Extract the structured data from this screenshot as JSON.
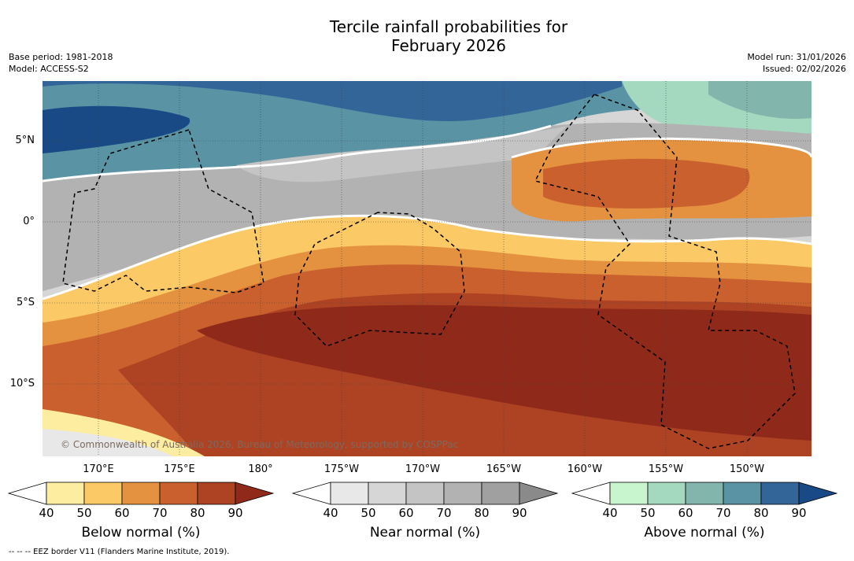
{
  "title": "Tercile rainfall probabilities for\nFebruary 2026",
  "meta_left": {
    "base_period": "Base period: 1981-2018",
    "model": "Model: ACCESS-S2"
  },
  "meta_right": {
    "model_run": "Model run: 31/01/2026",
    "issued": "Issued: 02/02/2026"
  },
  "map": {
    "lat_labels": [
      "5°N",
      "0°",
      "5°S",
      "10°S"
    ],
    "lon_labels": [
      "170°E",
      "175°E",
      "180°",
      "175°W",
      "170°W",
      "165°W",
      "160°W",
      "155°W",
      "150°W"
    ],
    "copyright": "© Commonwealth of Australia 2026, Bureau of Meteorology, supported by COSPPac"
  },
  "colorbars": [
    {
      "label": "Below normal (%)",
      "ticks": [
        "40",
        "50",
        "60",
        "70",
        "80",
        "90"
      ],
      "colors": [
        "#fdeda0",
        "#fbc965",
        "#e4923f",
        "#c9602e",
        "#ae4324",
        "#8f2a1a"
      ]
    },
    {
      "label": "Near normal (%)",
      "ticks": [
        "40",
        "50",
        "60",
        "70",
        "80",
        "90"
      ],
      "colors": [
        "#e8e8e8",
        "#d6d6d6",
        "#c4c4c4",
        "#b2b2b2",
        "#a0a0a0",
        "#8a8a8a"
      ]
    },
    {
      "label": "Above normal (%)",
      "ticks": [
        "40",
        "50",
        "60",
        "70",
        "80",
        "90"
      ],
      "colors": [
        "#c8f5cd",
        "#a4d8bf",
        "#82b6ad",
        "#5a93a4",
        "#336598",
        "#194a85"
      ]
    }
  ],
  "footnote": "--  --  -- EEZ border V11 (Flanders Marine Institute, 2019)."
}
